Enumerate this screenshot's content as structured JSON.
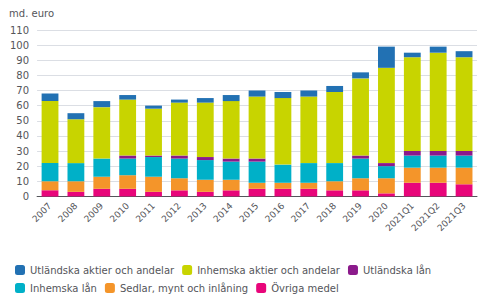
{
  "chart_data": {
    "type": "bar",
    "stacked": true,
    "ylabel": "md. euro",
    "categories": [
      "2007",
      "2008",
      "2009",
      "2010",
      "2011",
      "2012",
      "2013",
      "2014",
      "2015",
      "2016",
      "2017",
      "2018",
      "2019",
      "2020",
      "2021Q1",
      "2021Q2",
      "2021Q3"
    ],
    "series": [
      {
        "name": "Övriga medel",
        "color": "#e8057a",
        "values": [
          4,
          3,
          5,
          5,
          3,
          4,
          3,
          4,
          5,
          5,
          5,
          4,
          4,
          2,
          9,
          9,
          8
        ]
      },
      {
        "name": "Sedlar, mynt och inlåning",
        "color": "#f4952a",
        "values": [
          6,
          7,
          8,
          9,
          10,
          8,
          8,
          7,
          4,
          4,
          4,
          6,
          8,
          10,
          10,
          10,
          11
        ]
      },
      {
        "name": "Inhemska lån",
        "color": "#00b0c8",
        "values": [
          12,
          12,
          12,
          11,
          13,
          13,
          13,
          12,
          14,
          12,
          13,
          12,
          13,
          8,
          8,
          8,
          8
        ]
      },
      {
        "name": "Utländska lån",
        "color": "#8b1a8b",
        "values": [
          0,
          0,
          0,
          2,
          1,
          2,
          2,
          2,
          2,
          0,
          0,
          0,
          2,
          2,
          3,
          3,
          3
        ]
      },
      {
        "name": "Inhemska aktier och andelar",
        "color": "#c8d400",
        "values": [
          41,
          29,
          34,
          37,
          31,
          35,
          36,
          38,
          41,
          44,
          44,
          47,
          51,
          63,
          62,
          65,
          62
        ]
      },
      {
        "name": "Utländska aktier och andelar",
        "color": "#2271b3",
        "values": [
          5,
          4,
          4,
          3,
          2,
          2,
          3,
          4,
          4,
          4,
          4,
          4,
          4,
          14,
          3,
          4,
          4
        ]
      }
    ],
    "ylim": [
      0,
      110
    ],
    "yticks": [
      0,
      10,
      20,
      30,
      40,
      50,
      60,
      70,
      80,
      90,
      100,
      110
    ],
    "grid": true,
    "legend": "bottom"
  }
}
